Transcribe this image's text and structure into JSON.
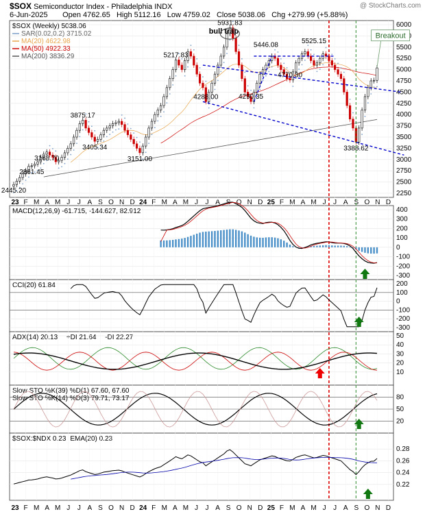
{
  "header": {
    "symbol": "$SOX",
    "name": "Semiconductor Index - Philadelphia",
    "exchange": "INDX",
    "date": "6-Jun-2025",
    "open_label": "Open",
    "open": "4762.65",
    "high_label": "High",
    "high": "5112.16",
    "low_label": "Low",
    "low": "4759.02",
    "close_label": "Close",
    "close": "5038.06",
    "chg_label": "Chg",
    "chg": "+279.99 (+5.88%)",
    "watermark": "@ StockCharts.com"
  },
  "colors": {
    "up": "#000000",
    "down": "#cc0000",
    "ma20": "#e8a54c",
    "ma50": "#cc0000",
    "ma200": "#555555",
    "sar": "#7a9ec9",
    "macd_hist": "#4a90c8",
    "trend": "#0000cc",
    "vline_red": "#dd0000",
    "vline_green": "#2a8a2a",
    "arrow_green": "#117711",
    "arrow_red": "#ee0000",
    "cci_fill": "#6a8a6a",
    "cci_fill_neg": "#8a4a4a",
    "di_plus": "#2a8a2a",
    "di_minus": "#cc0000",
    "ema": "#0000aa"
  },
  "chart_data": [
    {
      "type": "candlestick",
      "title": "$SOX (Weekly) 5038.06",
      "legend": [
        {
          "name": "SAR(0.02,0.2) 3715.02",
          "color": "#7a9ec9"
        },
        {
          "name": "MA(20) 4622.98",
          "color": "#e8a54c"
        },
        {
          "name": "MA(50) 4922.33",
          "color": "#cc0000"
        },
        {
          "name": "MA(200) 3836.29",
          "color": "#555555"
        }
      ],
      "x_ticks": [
        "23",
        "F",
        "M",
        "A",
        "M",
        "J",
        "J",
        "A",
        "S",
        "O",
        "N",
        "D",
        "24",
        "F",
        "M",
        "A",
        "M",
        "J",
        "J",
        "A",
        "S",
        "O",
        "N",
        "D",
        "25",
        "F",
        "M",
        "A",
        "M",
        "J",
        "J",
        "A",
        "S",
        "O",
        "N",
        "D"
      ],
      "ylim": [
        2250,
        6000
      ],
      "y_ticks": [
        2250,
        2500,
        2750,
        3000,
        3250,
        3500,
        3750,
        4000,
        4250,
        4500,
        4750,
        5000,
        5250,
        5500,
        5750,
        6000
      ],
      "close_series": [
        2445,
        2520,
        2600,
        2680,
        2750,
        2850,
        2861,
        2900,
        2950,
        3050,
        3120,
        3168,
        3100,
        3050,
        2950,
        2980,
        3050,
        3150,
        3250,
        3350,
        3500,
        3650,
        3800,
        3875,
        3700,
        3600,
        3500,
        3405,
        3450,
        3550,
        3650,
        3700,
        3750,
        3800,
        3820,
        3850,
        3780,
        3650,
        3550,
        3450,
        3350,
        3250,
        3151,
        3300,
        3500,
        3700,
        3850,
        4000,
        4100,
        4200,
        4400,
        4600,
        4800,
        5000,
        5217,
        5100,
        5000,
        5200,
        5400,
        5300,
        5100,
        4900,
        4700,
        4600,
        4288,
        4500,
        4700,
        4900,
        5100,
        5300,
        5500,
        5800,
        5931,
        5700,
        5400,
        5100,
        4800,
        4500,
        4400,
        4290,
        4500,
        4700,
        4900,
        5000,
        5100,
        5200,
        5300,
        5250,
        5100,
        5000,
        4900,
        4800,
        4770,
        4950,
        5150,
        5250,
        5350,
        5400,
        5300,
        5200,
        5100,
        5150,
        5250,
        5350,
        5300,
        5200,
        5100,
        5000,
        4900,
        4800,
        4500,
        4200,
        3900,
        3700,
        3388,
        3700,
        4100,
        4400,
        4600,
        4750,
        4762,
        5038
      ],
      "annotations": [
        {
          "text": "2445.20",
          "x": 0,
          "y": 2445
        },
        {
          "text": "2861.45",
          "x": 6,
          "y": 2861
        },
        {
          "text": "3168.70",
          "x": 11,
          "y": 3168
        },
        {
          "text": "3875.17",
          "x": 23,
          "y": 3875
        },
        {
          "text": "3405.34",
          "x": 27,
          "y": 3405
        },
        {
          "text": "3151.00",
          "x": 42,
          "y": 3151
        },
        {
          "text": "5217.83",
          "x": 54,
          "y": 5217
        },
        {
          "text": "4288.00",
          "x": 64,
          "y": 4288
        },
        {
          "text": "5931.83",
          "x": 72,
          "y": 5931
        },
        {
          "text": "4290.35",
          "x": 79,
          "y": 4290
        },
        {
          "text": "5446.08",
          "x": 84,
          "y": 5446
        },
        {
          "text": "4770.30",
          "x": 92,
          "y": 4770
        },
        {
          "text": "5525.15",
          "x": 100,
          "y": 5525
        },
        {
          "text": "3388.62",
          "x": 114,
          "y": 3388
        },
        {
          "text": "bull trap",
          "x": 65,
          "y": 5800
        },
        {
          "text": "Breakout",
          "x": 120,
          "y": 5700
        }
      ]
    },
    {
      "type": "line",
      "title": "MACD(12,26,9) -61.715, -144.627, 82.912",
      "ylim": [
        -300,
        400
      ],
      "y_ticks": [
        -300,
        -200,
        -100,
        0,
        100,
        200,
        300,
        400
      ]
    },
    {
      "type": "line",
      "title": "CCI(20) 61.84",
      "ylim": [
        -300,
        200
      ],
      "y_ticks": [
        -300,
        -200,
        -100,
        0,
        100,
        200
      ]
    },
    {
      "type": "line",
      "title": "ADX(14) 20.13",
      "series_names": [
        "+DI 21.64",
        "-DI 22.27"
      ],
      "ylim": [
        0,
        50
      ],
      "y_ticks": [
        10,
        20,
        30,
        40,
        50
      ]
    },
    {
      "type": "line",
      "title": "Slow STO %K(39) %D(1) 67.60, 67.60",
      "subtitle": "Slow STO %K(14) %D(3) 79.71, 73.17",
      "ylim": [
        0,
        100
      ],
      "y_ticks": [
        20,
        50,
        80
      ]
    },
    {
      "type": "line",
      "title": "$SOX:$NDX 0.23",
      "series_names": [
        "EMA(20) 0.23"
      ],
      "ylim": [
        0.2,
        0.3
      ],
      "y_ticks": [
        0.22,
        0.24,
        0.26,
        0.28
      ]
    }
  ]
}
